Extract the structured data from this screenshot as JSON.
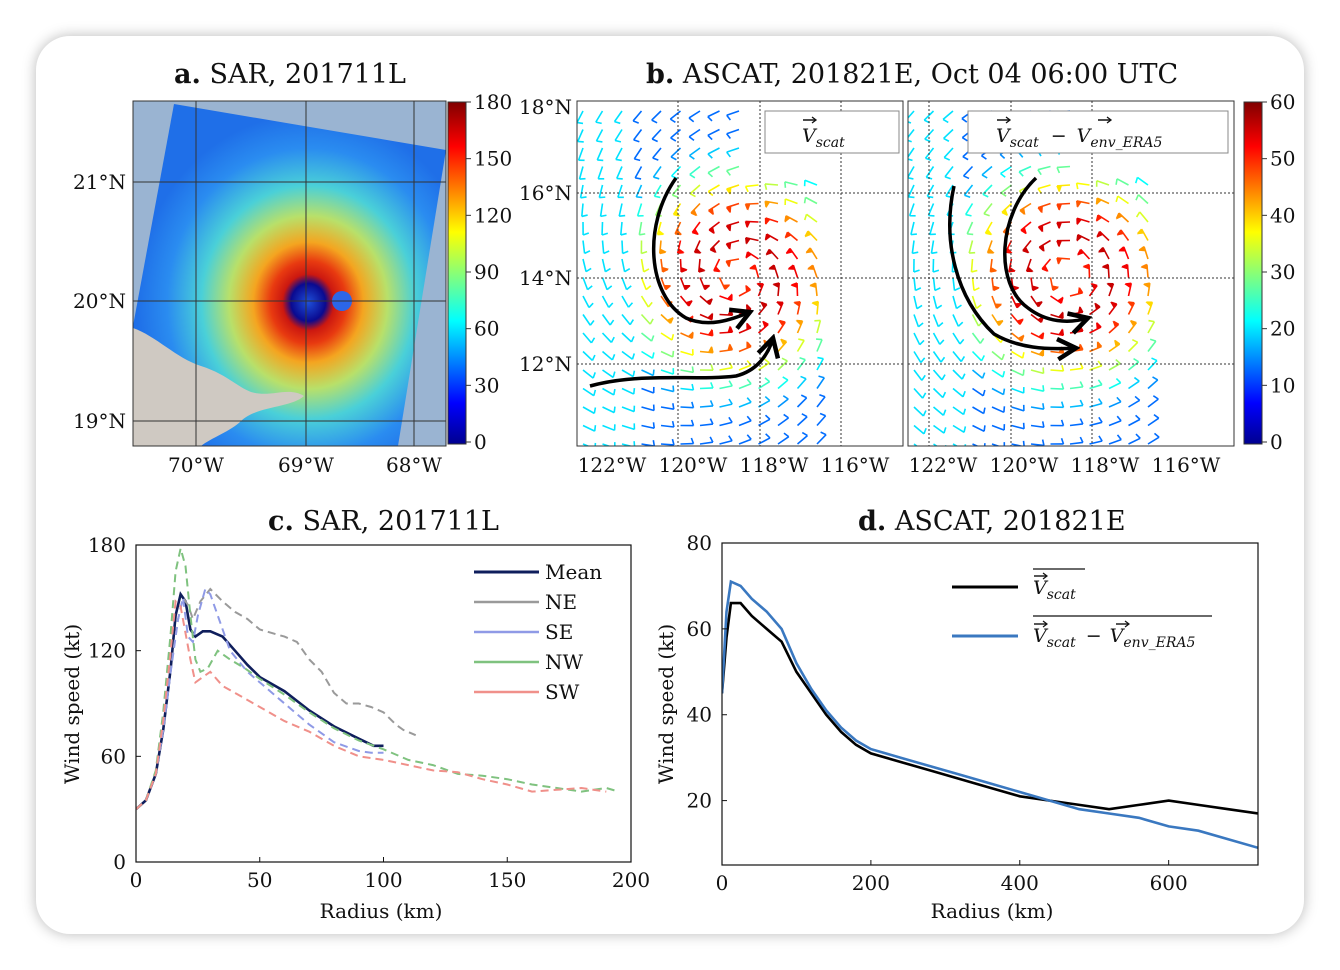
{
  "panel_a": {
    "label": "a.",
    "title": "SAR, 201711L",
    "y_ticks": [
      "21°N",
      "20°N",
      "19°N"
    ],
    "x_ticks": [
      "70°W",
      "69°W",
      "68°W"
    ],
    "colorbar_ticks": [
      "180",
      "150",
      "120",
      "90",
      "60",
      "30",
      "0"
    ]
  },
  "panel_b": {
    "label": "b.",
    "title": "ASCAT, 201821E, Oct 04 06:00 UTC",
    "y_ticks": [
      "18°N",
      "16°N",
      "14°N",
      "12°N"
    ],
    "x_ticks_left": [
      "122°W",
      "120°W",
      "118°W",
      "116°W"
    ],
    "x_ticks_right": [
      "122°W",
      "120°W",
      "118°W",
      "116°W"
    ],
    "left_legend": {
      "v": "V",
      "sub": "scat"
    },
    "right_legend": {
      "v1": "V",
      "sub1": "scat",
      "minus": "−",
      "v2": "V",
      "sub2": "env_ERA5"
    },
    "colorbar_ticks": [
      "60",
      "50",
      "40",
      "30",
      "20",
      "10",
      "0"
    ]
  },
  "chart_data": [
    {
      "panel": "c",
      "type": "line",
      "title_label": "c.",
      "title": "SAR, 201711L",
      "xlabel": "Radius (km)",
      "ylabel": "Wind speed (kt)",
      "xlim": [
        0,
        200
      ],
      "ylim": [
        0,
        180
      ],
      "x_ticks": [
        "0",
        "50",
        "100",
        "150",
        "200"
      ],
      "y_ticks": [
        "180",
        "120",
        "60",
        "0"
      ],
      "legend_position": "upper-right",
      "series": [
        {
          "name": "Mean",
          "color": "#0f1e5c",
          "dashed": false,
          "x": [
            0,
            4,
            8,
            11,
            14,
            16,
            18,
            20,
            22,
            24,
            27,
            30,
            35,
            40,
            45,
            50,
            60,
            70,
            80,
            90,
            96,
            100
          ],
          "y": [
            30,
            35,
            50,
            75,
            110,
            140,
            152,
            148,
            132,
            128,
            131,
            131,
            128,
            120,
            112,
            105,
            97,
            86,
            77,
            70,
            66,
            66
          ]
        },
        {
          "name": "NE",
          "color": "#9a9a9a",
          "dashed": true,
          "x": [
            0,
            4,
            8,
            11,
            14,
            17,
            19,
            21,
            23,
            26,
            30,
            35,
            40,
            45,
            50,
            55,
            60,
            65,
            70,
            75,
            80,
            85,
            90,
            95,
            100,
            105,
            108,
            113
          ],
          "y": [
            30,
            35,
            50,
            75,
            110,
            138,
            150,
            146,
            138,
            148,
            155,
            148,
            142,
            138,
            132,
            130,
            128,
            125,
            115,
            108,
            96,
            90,
            90,
            88,
            85,
            78,
            75,
            72
          ]
        },
        {
          "name": "SE",
          "color": "#8f9ae6",
          "dashed": true,
          "x": [
            0,
            4,
            8,
            11,
            14,
            17,
            19,
            21,
            23,
            25,
            28,
            30,
            33,
            38,
            45,
            50,
            60,
            70,
            80,
            90,
            95,
            100
          ],
          "y": [
            30,
            35,
            50,
            75,
            108,
            138,
            150,
            128,
            125,
            140,
            155,
            152,
            140,
            120,
            108,
            102,
            90,
            78,
            68,
            63,
            62,
            62
          ]
        },
        {
          "name": "NW",
          "color": "#7fc27f",
          "dashed": true,
          "x": [
            0,
            4,
            8,
            11,
            14,
            16,
            18,
            20,
            22,
            24,
            26,
            29,
            33,
            38,
            44,
            50,
            60,
            70,
            80,
            90,
            100,
            110,
            120,
            130,
            140,
            150,
            160,
            170,
            180,
            190,
            195
          ],
          "y": [
            30,
            35,
            52,
            85,
            130,
            165,
            178,
            168,
            140,
            115,
            108,
            110,
            120,
            115,
            110,
            104,
            95,
            85,
            76,
            69,
            64,
            58,
            55,
            50,
            49,
            47,
            44,
            42,
            40,
            42,
            40
          ]
        },
        {
          "name": "SW",
          "color": "#f0908a",
          "dashed": true,
          "x": [
            0,
            4,
            8,
            11,
            14,
            16,
            18,
            20,
            22,
            24,
            27,
            30,
            35,
            40,
            50,
            60,
            70,
            80,
            90,
            100,
            110,
            120,
            130,
            140,
            150,
            160,
            170,
            180,
            190
          ],
          "y": [
            30,
            35,
            50,
            80,
            120,
            148,
            145,
            130,
            115,
            102,
            105,
            108,
            100,
            96,
            88,
            80,
            74,
            66,
            60,
            58,
            55,
            52,
            51,
            47,
            44,
            40,
            41,
            42,
            40
          ]
        }
      ]
    },
    {
      "panel": "d",
      "type": "line",
      "title_label": "d.",
      "title": "ASCAT, 201821E",
      "xlabel": "Radius (km)",
      "ylabel": "Wind speed (kt)",
      "xlim": [
        0,
        720
      ],
      "ylim": [
        5,
        80
      ],
      "x_ticks": [
        "0",
        "200",
        "400",
        "600"
      ],
      "y_ticks": [
        "80",
        "60",
        "40",
        "20"
      ],
      "legend_position": "upper-right",
      "series": [
        {
          "name": "V_scat",
          "color": "#000000",
          "dashed": false,
          "x": [
            0,
            6,
            12,
            25,
            40,
            60,
            80,
            100,
            120,
            140,
            160,
            180,
            200,
            240,
            280,
            320,
            360,
            400,
            440,
            480,
            520,
            560,
            600,
            640,
            680,
            720
          ],
          "y": [
            45,
            58,
            66,
            66,
            63,
            60,
            57,
            50,
            45,
            40,
            36,
            33,
            31,
            29,
            27,
            25,
            23,
            21,
            20,
            19,
            18,
            19,
            20,
            19,
            18,
            17
          ]
        },
        {
          "name": "V_scat − V_env_ERA5",
          "color": "#3a78c0",
          "dashed": false,
          "x": [
            0,
            6,
            12,
            25,
            40,
            60,
            80,
            100,
            120,
            140,
            160,
            180,
            200,
            240,
            280,
            320,
            360,
            400,
            440,
            480,
            520,
            560,
            600,
            640,
            680,
            720
          ],
          "y": [
            45,
            64,
            71,
            70,
            67,
            64,
            60,
            52,
            46,
            41,
            37,
            34,
            32,
            30,
            28,
            26,
            24,
            22,
            20,
            18,
            17,
            16,
            14,
            13,
            11,
            9
          ]
        }
      ]
    }
  ]
}
